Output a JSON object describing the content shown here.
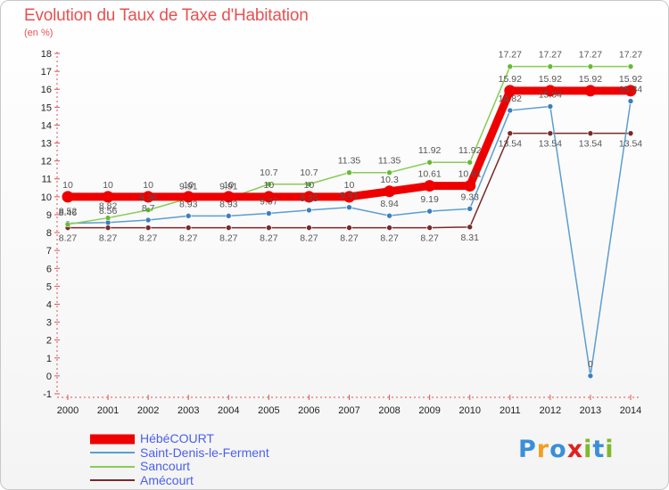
{
  "title": "Evolution du Taux de Taxe d'Habitation",
  "unit": "(en %)",
  "brand": {
    "letters": [
      "P",
      "r",
      "o",
      "x",
      "i",
      "t",
      "i"
    ],
    "colors": [
      "#3a8fd8",
      "#f0a020",
      "#3a8fd8",
      "#e02020",
      "#80b830",
      "#3a8fd8",
      "#80b830"
    ]
  },
  "chart_data": {
    "type": "line",
    "x": [
      2000,
      2001,
      2002,
      2003,
      2004,
      2005,
      2006,
      2007,
      2008,
      2009,
      2010,
      2011,
      2012,
      2013,
      2014
    ],
    "ylim": [
      -1,
      18
    ],
    "yticks": [
      -1,
      0,
      1,
      2,
      3,
      4,
      5,
      6,
      7,
      8,
      9,
      10,
      11,
      12,
      13,
      14,
      15,
      16,
      17,
      18
    ],
    "grid": false,
    "series": [
      {
        "name": "Amécourt",
        "color": "#7a2a2a",
        "width": 1.5,
        "marker": "#7a2a2a",
        "values": [
          8.27,
          8.27,
          8.27,
          8.27,
          8.27,
          8.27,
          8.27,
          8.27,
          8.27,
          8.27,
          8.31,
          13.54,
          13.54,
          13.54,
          13.54
        ],
        "labels": [
          "8.27",
          "8.27",
          "8.27",
          "8.27",
          "8.27",
          "8.27",
          "8.27",
          "8.27",
          "8.27",
          "8.27",
          "8.31",
          "13.54",
          "13.54",
          "13.54",
          "13.54"
        ],
        "label_pos": "below"
      },
      {
        "name": "Saint-Denis-le-Ferment",
        "color": "#5b9ed0",
        "width": 1.5,
        "marker": "#3a7fc0",
        "values": [
          8.52,
          8.56,
          8.7,
          8.93,
          8.93,
          9.07,
          9.25,
          9.41,
          8.94,
          9.19,
          9.33,
          14.82,
          15.04,
          0,
          15.34
        ],
        "labels": [
          "8.52",
          "8.56",
          "8.7",
          "8.93",
          "8.93",
          "9.07",
          "9.25",
          "9.41",
          "8.94",
          "9.19",
          "9.33",
          "14.82",
          "15.04",
          "0",
          "15.34"
        ],
        "label_pos": "above"
      },
      {
        "name": "Sancourt",
        "color": "#88cc55",
        "width": 1.5,
        "marker": "#66bb33",
        "values": [
          8.46,
          8.82,
          9.26,
          9.91,
          9.91,
          10.7,
          10.7,
          11.35,
          11.35,
          11.92,
          11.92,
          17.27,
          17.27,
          17.27,
          17.27
        ],
        "labels": [
          "8.46",
          "8.82",
          "9.26",
          "9.91",
          "9.91",
          "10.7",
          "10.7",
          "11.35",
          "11.35",
          "11.92",
          "11.92",
          "17.27",
          "17.27",
          "17.27",
          "17.27"
        ],
        "label_pos": "above"
      },
      {
        "name": "HébéCOURT",
        "color": "#ee0000",
        "width": 9,
        "marker": "#ee0000",
        "values": [
          10,
          10,
          10,
          10,
          10,
          10,
          10,
          10,
          10.3,
          10.61,
          10.61,
          15.92,
          15.92,
          15.92,
          15.92
        ],
        "labels": [
          "10",
          "10",
          "10",
          "10",
          "10",
          "10",
          "10",
          "10",
          "10.3",
          "10.61",
          "10.61",
          "15.92",
          "15.92",
          "15.92",
          "15.92"
        ],
        "label_pos": "above"
      }
    ],
    "legend_order": [
      "HébéCOURT",
      "Saint-Denis-le-Ferment",
      "Sancourt",
      "Amécourt"
    ],
    "legend_position": "bottom-left"
  }
}
